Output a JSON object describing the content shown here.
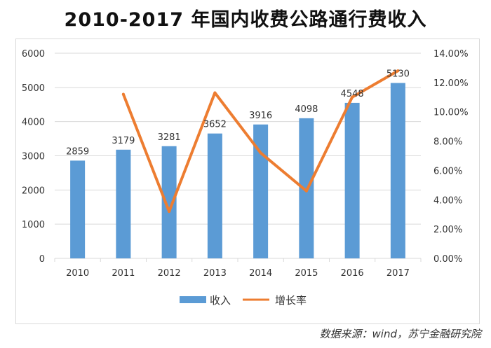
{
  "title": "2010-2017 年国内收费公路通行费收入",
  "source": "数据来源：wind，苏宁金融研究院",
  "chart_data": {
    "type": "bar",
    "categories": [
      "2010",
      "2011",
      "2012",
      "2013",
      "2014",
      "2015",
      "2016",
      "2017"
    ],
    "series": [
      {
        "name": "收入",
        "type": "bar",
        "axis": "left",
        "color": "#5b9bd5",
        "values": [
          2859,
          3179,
          3281,
          3652,
          3916,
          4098,
          4548,
          5130
        ]
      },
      {
        "name": "增长率",
        "type": "line",
        "axis": "right",
        "color": "#ed7d31",
        "values": [
          null,
          11.2,
          3.2,
          11.3,
          7.2,
          4.6,
          11.0,
          12.8
        ]
      }
    ],
    "y_left": {
      "min": 0,
      "max": 6000,
      "ticks": [
        "0",
        "1000",
        "2000",
        "3000",
        "4000",
        "5000",
        "6000"
      ]
    },
    "y_right": {
      "min": 0,
      "max": 14,
      "ticks": [
        "0.00%",
        "2.00%",
        "4.00%",
        "6.00%",
        "8.00%",
        "10.00%",
        "12.00%",
        "14.00%"
      ]
    },
    "grid": true,
    "legend_position": "bottom"
  }
}
